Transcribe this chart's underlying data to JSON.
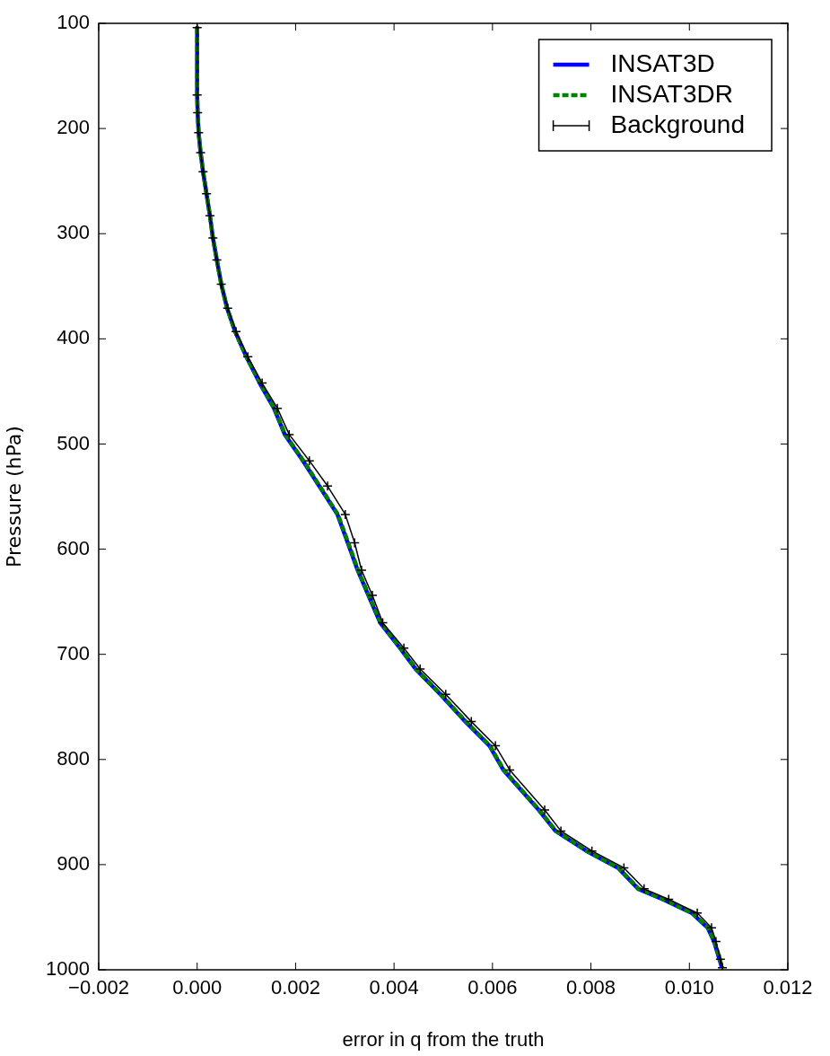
{
  "chart_data": {
    "type": "line",
    "xlabel": "error in q from the truth",
    "ylabel": "Pressure (hPa)",
    "xlim": [
      -0.002,
      0.012
    ],
    "xticks": [
      {
        "value": -0.002,
        "label": "−0.002"
      },
      {
        "value": 0,
        "label": "0.000"
      },
      {
        "value": 0.002,
        "label": "0.002"
      },
      {
        "value": 0.004,
        "label": "0.004"
      },
      {
        "value": 0.006,
        "label": "0.006"
      },
      {
        "value": 0.008,
        "label": "0.008"
      },
      {
        "value": 0.01,
        "label": "0.010"
      },
      {
        "value": 0.012,
        "label": "0.012"
      }
    ],
    "ylim": [
      1000,
      100
    ],
    "yticks": [
      100,
      200,
      300,
      400,
      500,
      600,
      700,
      800,
      900,
      1000
    ],
    "grid": false,
    "legend": "top right",
    "series": [
      {
        "name": "INSAT3D",
        "color": "#0000ff",
        "line_style": "solid",
        "marker": "none",
        "x": [
          0,
          0,
          1e-05,
          3e-05,
          7e-05,
          0.00012,
          0.00019,
          0.00026,
          0.00032,
          0.0004,
          0.00049,
          0.00061,
          0.00077,
          0.001,
          0.00127,
          0.00156,
          0.00178,
          0.00215,
          0.00248,
          0.00285,
          0.00306,
          0.00326,
          0.00348,
          0.00372,
          0.00412,
          0.00444,
          0.00494,
          0.00545,
          0.00594,
          0.00622,
          0.00694,
          0.00728,
          0.00791,
          0.00855,
          0.00896,
          0.00946,
          0.01005,
          0.01037,
          0.0105,
          0.01061,
          0.01066
        ],
        "values": [
          104,
          168,
          185,
          204,
          223,
          241,
          262,
          283,
          304,
          325,
          348,
          371,
          393,
          417,
          442,
          466,
          491,
          516,
          540,
          567,
          594,
          620,
          644,
          670,
          694,
          714,
          738,
          764,
          787,
          810,
          848,
          868,
          887,
          903,
          923,
          933,
          946,
          960,
          973,
          990,
          998
        ]
      },
      {
        "name": "INSAT3DR",
        "color": "#008000",
        "line_style": "dashed",
        "marker": "none",
        "x": [
          0,
          0,
          1e-05,
          3e-05,
          7e-05,
          0.00012,
          0.00019,
          0.00026,
          0.00032,
          0.0004,
          0.00049,
          0.00061,
          0.00077,
          0.001,
          0.00128,
          0.00157,
          0.00179,
          0.00216,
          0.00249,
          0.00286,
          0.00307,
          0.00327,
          0.00349,
          0.00373,
          0.00413,
          0.00445,
          0.00495,
          0.00546,
          0.00595,
          0.00623,
          0.00695,
          0.00729,
          0.00792,
          0.00856,
          0.00897,
          0.00947,
          0.01006,
          0.01038,
          0.01051,
          0.01062,
          0.01066
        ],
        "values": [
          104,
          168,
          185,
          204,
          223,
          241,
          262,
          283,
          304,
          325,
          348,
          371,
          393,
          417,
          442,
          466,
          491,
          516,
          540,
          567,
          594,
          620,
          644,
          670,
          694,
          714,
          738,
          764,
          787,
          810,
          848,
          868,
          887,
          903,
          923,
          933,
          946,
          960,
          973,
          990,
          998
        ]
      },
      {
        "name": "Background",
        "color": "#000000",
        "line_style": "solid",
        "marker": "cross",
        "x": [
          0,
          0,
          1e-05,
          3e-05,
          7e-05,
          0.00012,
          0.00019,
          0.00026,
          0.00032,
          0.0004,
          0.00049,
          0.00062,
          0.00079,
          0.00103,
          0.00132,
          0.00163,
          0.00187,
          0.00228,
          0.00265,
          0.00301,
          0.0032,
          0.00334,
          0.00356,
          0.00377,
          0.0042,
          0.00453,
          0.00505,
          0.00557,
          0.00606,
          0.00635,
          0.00706,
          0.00739,
          0.00802,
          0.00867,
          0.00908,
          0.00958,
          0.01016,
          0.01045,
          0.01054,
          0.01063,
          0.01067
        ],
        "values": [
          104,
          168,
          185,
          204,
          223,
          241,
          262,
          283,
          304,
          325,
          348,
          371,
          393,
          417,
          442,
          466,
          491,
          516,
          540,
          567,
          594,
          620,
          644,
          670,
          694,
          714,
          738,
          764,
          787,
          810,
          848,
          868,
          887,
          903,
          923,
          933,
          946,
          960,
          973,
          990,
          998
        ]
      }
    ]
  }
}
